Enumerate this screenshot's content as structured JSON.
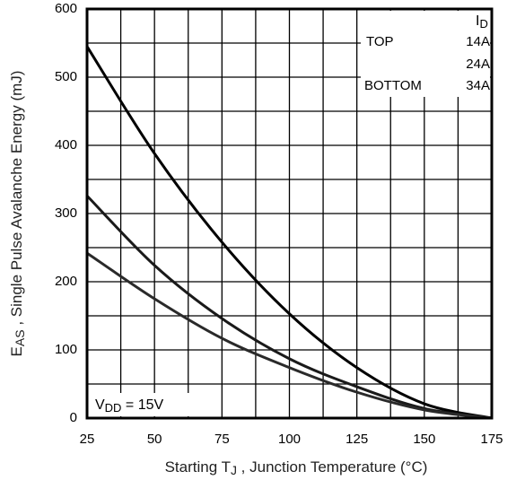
{
  "chart_data": {
    "type": "line",
    "xlabel": [
      {
        "t": "Starting T"
      },
      {
        "t": "J",
        "sub": true
      },
      {
        "t": " , Junction Temperature (°C)"
      }
    ],
    "ylabel": [
      {
        "t": "E"
      },
      {
        "t": "AS",
        "sub": true
      },
      {
        "t": " ,   Single Pulse Avalanche Energy (mJ)"
      }
    ],
    "annotation": [
      {
        "t": "V"
      },
      {
        "t": "DD",
        "sub": true
      },
      {
        "t": " = 15V"
      }
    ],
    "legend_title": [
      {
        "t": "I"
      },
      {
        "t": "D",
        "sub": true
      }
    ],
    "legend_top": "TOP",
    "legend_bottom": "BOTTOM",
    "legend_position": "upper right",
    "x": [
      25,
      50,
      75,
      100,
      125,
      150,
      175
    ],
    "series": [
      {
        "name": "14A",
        "color": "#000000",
        "values": [
          545,
          388,
          258,
          153,
          74,
          21,
          0
        ]
      },
      {
        "name": "24A",
        "color": "#1a1a1a",
        "values": [
          326,
          224,
          146,
          87,
          46,
          14,
          0
        ]
      },
      {
        "name": "34A",
        "color": "#2a2a2a",
        "values": [
          242,
          175,
          117,
          74,
          38,
          12,
          0
        ]
      }
    ],
    "xlim": [
      25,
      175
    ],
    "xticks": [
      25,
      50,
      75,
      100,
      125,
      150,
      175
    ],
    "ylim": [
      0,
      600
    ],
    "yticks": [
      0,
      100,
      200,
      300,
      400,
      500,
      600
    ],
    "grid": true
  }
}
